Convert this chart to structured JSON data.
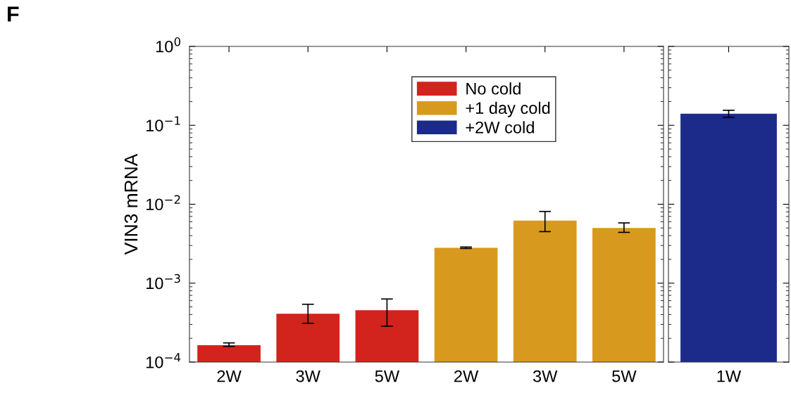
{
  "chart_data": [
    {
      "type": "bar",
      "categories": [
        "2W",
        "3W",
        "5W",
        "2W",
        "3W",
        "5W"
      ],
      "log": true,
      "ylabel": "VIN3 mRNA",
      "ylim": [
        0.0001,
        1
      ],
      "yticks": [
        {
          "value": 0.0001,
          "label": "10$^{−4}$"
        },
        {
          "value": 0.001,
          "label": "10$^{−3}$"
        },
        {
          "value": 0.01,
          "label": "10$^{−2}$"
        },
        {
          "value": 0.1,
          "label": "10$^{−1}$"
        },
        {
          "value": 1,
          "label": "10$^{0}$"
        }
      ],
      "legend": "top right",
      "annotations": [
        "F"
      ],
      "series": [
        {
          "name": "No cold",
          "color": "#d2241c",
          "values": [
            0.000164,
            0.00041,
            0.000455,
            null,
            null,
            null
          ],
          "errors": [
            [
              0.000158,
              0.000175
            ],
            [
              0.00031,
              0.00054
            ],
            [
              0.000285,
              0.00063
            ],
            null,
            null,
            null
          ]
        },
        {
          "name": "+1 day cold",
          "color": "#d89a1e",
          "values": [
            null,
            null,
            null,
            0.0028,
            0.0062,
            0.005
          ],
          "errors": [
            null,
            null,
            null,
            [
              0.00275,
              0.00287
            ],
            [
              0.0045,
              0.0081
            ],
            [
              0.0044,
              0.0058
            ]
          ]
        },
        {
          "name": "+2W cold",
          "color": "#1c2a8a",
          "values": [
            null,
            null,
            null,
            null,
            null,
            null
          ]
        }
      ]
    },
    {
      "type": "bar",
      "categories": [
        "1W"
      ],
      "log": true,
      "ylim": [
        0.0001,
        1
      ],
      "tick_labels": "x",
      "series": [
        {
          "color": "#1c2a8a",
          "values": [
            0.14
          ],
          "errors": [
            [
              0.126,
              0.155
            ]
          ]
        }
      ]
    }
  ]
}
